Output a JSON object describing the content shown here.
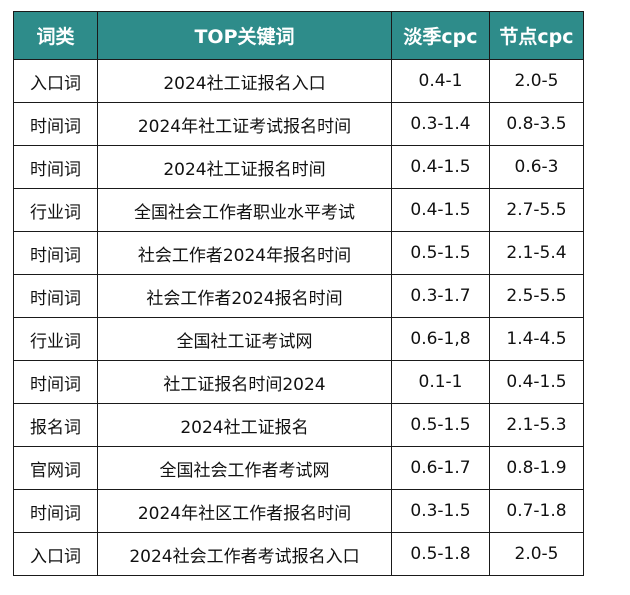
{
  "table": {
    "headers": [
      "词类",
      "TOP关键词",
      "淡季cpc",
      "节点cpc"
    ],
    "rows": [
      {
        "category": "入口词",
        "keyword": "2024社工证报名入口",
        "off_season_cpc": "0.4-1",
        "peak_cpc": "2.0-5"
      },
      {
        "category": "时间词",
        "keyword": "2024年社工证考试报名时间",
        "off_season_cpc": "0.3-1.4",
        "peak_cpc": "0.8-3.5"
      },
      {
        "category": "时间词",
        "keyword": "2024社工证报名时间",
        "off_season_cpc": "0.4-1.5",
        "peak_cpc": "0.6-3"
      },
      {
        "category": "行业词",
        "keyword": "全国社会工作者职业水平考试",
        "off_season_cpc": "0.4-1.5",
        "peak_cpc": "2.7-5.5"
      },
      {
        "category": "时间词",
        "keyword": "社会工作者2024年报名时间",
        "off_season_cpc": "0.5-1.5",
        "peak_cpc": "2.1-5.4"
      },
      {
        "category": "时间词",
        "keyword": "社会工作者2024报名时间",
        "off_season_cpc": "0.3-1.7",
        "peak_cpc": "2.5-5.5"
      },
      {
        "category": "行业词",
        "keyword": "全国社工证考试网",
        "off_season_cpc": "0.6-1,8",
        "peak_cpc": "1.4-4.5"
      },
      {
        "category": "时间词",
        "keyword": "社工证报名时间2024",
        "off_season_cpc": "0.1-1",
        "peak_cpc": "0.4-1.5"
      },
      {
        "category": "报名词",
        "keyword": "2024社工证报名",
        "off_season_cpc": "0.5-1.5",
        "peak_cpc": "2.1-5.3"
      },
      {
        "category": "官网词",
        "keyword": "全国社会工作者考试网",
        "off_season_cpc": "0.6-1.7",
        "peak_cpc": "0.8-1.9"
      },
      {
        "category": "时间词",
        "keyword": "2024年社区工作者报名时间",
        "off_season_cpc": "0.3-1.5",
        "peak_cpc": "0.7-1.8"
      },
      {
        "category": "入口词",
        "keyword": "2024社会工作者考试报名入口",
        "off_season_cpc": "0.5-1.8",
        "peak_cpc": "2.0-5"
      }
    ]
  },
  "colors": {
    "header_bg": "#2e8c8a",
    "header_text": "#ffffff",
    "border": "#1a1a1a",
    "cell_text": "#111111"
  }
}
